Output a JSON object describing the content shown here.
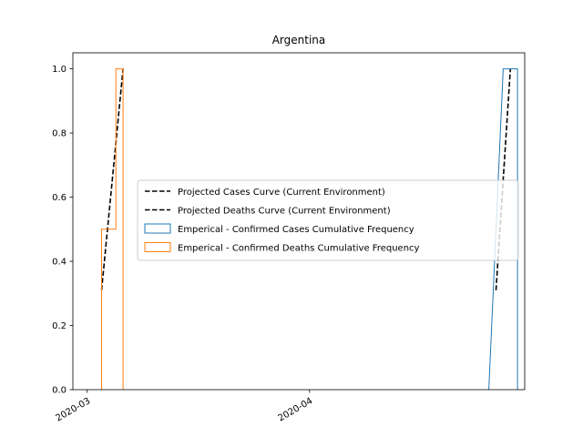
{
  "chart_data": {
    "type": "step",
    "title": "Argentina",
    "xlabel": "",
    "ylabel": "",
    "x_axis": {
      "type": "date",
      "range": [
        "2020-02-28",
        "2020-05-01"
      ],
      "ticks": [
        "2020-03-01",
        "2020-04-01"
      ],
      "tick_labels": [
        "2020-03",
        "2020-04"
      ]
    },
    "y_axis": {
      "range": [
        0,
        1.05
      ],
      "ticks": [
        0.0,
        0.2,
        0.4,
        0.6,
        0.8,
        1.0
      ],
      "tick_labels": [
        "0.0",
        "0.2",
        "0.4",
        "0.6",
        "0.8",
        "1.0"
      ]
    },
    "grid": false,
    "legend_position": "center-right",
    "series": [
      {
        "name": "Projected Cases Curve (Current Environment)",
        "kind": "dashed-line",
        "color": "#000000",
        "points": [
          [
            "2020-04-27",
            0.31
          ],
          [
            "2020-04-29",
            1.0
          ]
        ]
      },
      {
        "name": "Projected Deaths Curve (Current Environment)",
        "kind": "dashed-line",
        "color": "#000000",
        "points": [
          [
            "2020-03-03",
            0.31
          ],
          [
            "2020-03-06",
            1.0
          ]
        ]
      },
      {
        "name": "Emperical - Confirmed Cases Cumulative Frequency",
        "kind": "step-histogram",
        "color": "#1f77b4",
        "points": [
          [
            "2020-04-26",
            0.0
          ],
          [
            "2020-04-26",
            0.0
          ],
          [
            "2020-04-28",
            1.0
          ],
          [
            "2020-04-30",
            1.0
          ],
          [
            "2020-04-30",
            0.0
          ]
        ]
      },
      {
        "name": "Emperical - Confirmed Deaths Cumulative Frequency",
        "kind": "step-histogram",
        "color": "#ff7f0e",
        "points": [
          [
            "2020-03-03",
            0.0
          ],
          [
            "2020-03-03",
            0.5
          ],
          [
            "2020-03-05",
            0.5
          ],
          [
            "2020-03-05",
            1.0
          ],
          [
            "2020-03-06",
            1.0
          ],
          [
            "2020-03-06",
            0.0
          ]
        ]
      }
    ]
  }
}
